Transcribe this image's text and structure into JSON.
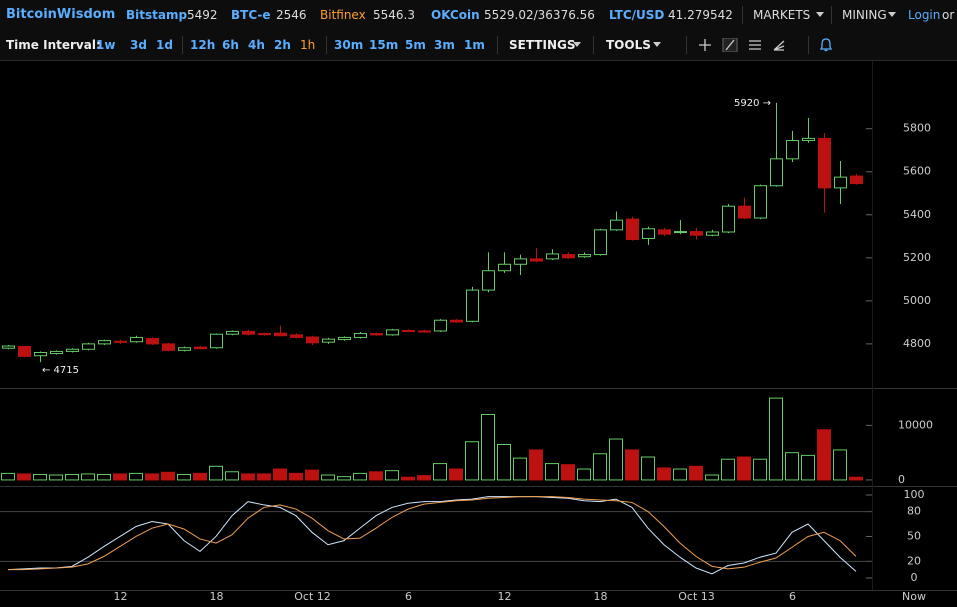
{
  "header": {
    "logo": "BitcoinWisdom",
    "tickers": [
      {
        "name": "Bitstamp",
        "price": "5492"
      },
      {
        "name": "BTC-e",
        "price": "2546"
      },
      {
        "name": "Bitfinex",
        "price": "5546.3"
      },
      {
        "name": "OKCoin",
        "price": "5529.02/36376.56"
      },
      {
        "name": "LTC/USD",
        "price": "41.279542"
      }
    ],
    "active_ticker": "Bitfinex",
    "menus": [
      "MARKETS",
      "MINING"
    ],
    "login": "Login",
    "or": "or"
  },
  "toolbar": {
    "label": "Time Interval:",
    "intervals": [
      "1w",
      "3d",
      "1d",
      "12h",
      "6h",
      "4h",
      "2h",
      "1h",
      "30m",
      "15m",
      "5m",
      "3m",
      "1m"
    ],
    "active_interval": "1h",
    "menus": [
      "SETTINGS",
      "TOOLS"
    ]
  },
  "chart_data": [
    {
      "type": "candlestick",
      "categories": [
        null,
        null,
        null,
        null,
        null,
        null,
        null,
        "12",
        null,
        null,
        null,
        null,
        null,
        "18",
        null,
        null,
        null,
        null,
        null,
        "Oct 12",
        null,
        null,
        null,
        null,
        null,
        "6",
        null,
        null,
        null,
        null,
        null,
        "12",
        null,
        null,
        null,
        null,
        null,
        "18",
        null,
        null,
        null,
        null,
        null,
        "Oct 13",
        null,
        null,
        null,
        null,
        null,
        "6",
        null,
        null,
        null,
        null
      ],
      "open": [
        4780,
        4788,
        4745,
        4755,
        4765,
        4775,
        4800,
        4812,
        4810,
        4825,
        4800,
        4770,
        4785,
        4782,
        4845,
        4858,
        4848,
        4850,
        4842,
        4832,
        4808,
        4820,
        4830,
        4848,
        4842,
        4862,
        4860,
        4860,
        4910,
        4905,
        5050,
        5140,
        5170,
        5195,
        5195,
        5215,
        5205,
        5215,
        5330,
        5380,
        5290,
        5330,
        5318,
        5322,
        5305,
        5320,
        5440,
        5385,
        5535,
        5660,
        5745,
        5755,
        5525,
        5580
      ],
      "high": [
        4795,
        4790,
        4765,
        4770,
        4780,
        4805,
        4820,
        4820,
        4838,
        4830,
        4805,
        4788,
        4790,
        4848,
        4862,
        4865,
        4852,
        4885,
        4848,
        4838,
        4828,
        4835,
        4855,
        4852,
        4870,
        4868,
        4865,
        4915,
        4915,
        5065,
        5225,
        5225,
        5215,
        5245,
        5240,
        5225,
        5225,
        5335,
        5415,
        5390,
        5345,
        5340,
        5375,
        5340,
        5330,
        5450,
        5480,
        5540,
        5920,
        5790,
        5850,
        5780,
        5650,
        5590
      ],
      "low": [
        4775,
        4738,
        4715,
        4750,
        4760,
        4770,
        4795,
        4800,
        4805,
        4795,
        4765,
        4765,
        4775,
        4778,
        4840,
        4840,
        4838,
        4835,
        4825,
        4795,
        4800,
        4815,
        4825,
        4838,
        4838,
        4855,
        4852,
        4855,
        4898,
        4900,
        5040,
        5130,
        5120,
        5180,
        5190,
        5195,
        5200,
        5210,
        5325,
        5280,
        5260,
        5300,
        5310,
        5285,
        5300,
        5315,
        5380,
        5380,
        5530,
        5645,
        5735,
        5410,
        5450,
        5540
      ],
      "close": [
        4790,
        4742,
        4760,
        4765,
        4775,
        4800,
        4815,
        4808,
        4830,
        4800,
        4770,
        4782,
        4778,
        4845,
        4858,
        4845,
        4843,
        4838,
        4830,
        4805,
        4822,
        4830,
        4848,
        4842,
        4865,
        4858,
        4856,
        4910,
        4902,
        5050,
        5140,
        5170,
        5195,
        5185,
        5218,
        5200,
        5215,
        5330,
        5375,
        5285,
        5335,
        5310,
        5322,
        5305,
        5320,
        5440,
        5385,
        5535,
        5660,
        5745,
        5755,
        5525,
        5575,
        5545
      ],
      "up_color": "#66cc66",
      "down_color": "#bb1111",
      "ylim": [
        4595,
        6110
      ],
      "yticks": [
        4800,
        5000,
        5200,
        5400,
        5600,
        5800
      ],
      "max_label": "5920 →",
      "min_label": "← 4715",
      "now_label": "Now"
    },
    {
      "type": "bar",
      "values": [
        1200,
        1100,
        1000,
        900,
        1000,
        1100,
        1000,
        1100,
        1200,
        1100,
        1400,
        1000,
        1200,
        2500,
        1500,
        1100,
        1100,
        2000,
        1200,
        1800,
        900,
        600,
        1200,
        1500,
        1700,
        500,
        800,
        3000,
        2000,
        7000,
        12000,
        6500,
        4000,
        5500,
        3000,
        2800,
        2000,
        4800,
        7500,
        5500,
        4200,
        2200,
        2000,
        2500,
        900,
        3800,
        4200,
        3800,
        15000,
        5000,
        4500,
        9200,
        5500,
        500
      ],
      "ylim": [
        -1110,
        16670
      ],
      "yticks": [
        0,
        10000
      ]
    },
    {
      "type": "line",
      "series": [
        {
          "color": "#cfe6ff",
          "values": [
            10,
            11,
            12,
            12,
            14,
            25,
            38,
            50,
            62,
            68,
            65,
            45,
            32,
            50,
            75,
            92,
            88,
            85,
            75,
            55,
            40,
            45,
            60,
            75,
            85,
            90,
            92,
            92,
            94,
            95,
            98,
            98,
            98,
            98,
            97,
            96,
            93,
            92,
            95,
            85,
            60,
            40,
            25,
            12,
            5,
            15,
            18,
            25,
            30,
            55,
            65,
            45,
            25,
            8
          ]
        },
        {
          "color": "#f0a050",
          "values": [
            10,
            10,
            11,
            12,
            13,
            17,
            26,
            38,
            50,
            60,
            65,
            59,
            47,
            42,
            52,
            72,
            85,
            88,
            83,
            72,
            57,
            47,
            48,
            60,
            73,
            83,
            89,
            91,
            93,
            94,
            96,
            97,
            98,
            98,
            98,
            97,
            95,
            94,
            93,
            91,
            80,
            62,
            42,
            26,
            14,
            11,
            13,
            19,
            24,
            37,
            50,
            55,
            45,
            26
          ]
        }
      ],
      "ylim": [
        -14.5,
        109.6
      ],
      "yticks": [
        0,
        20,
        50,
        80,
        100
      ],
      "levels": [
        20,
        80
      ]
    }
  ]
}
